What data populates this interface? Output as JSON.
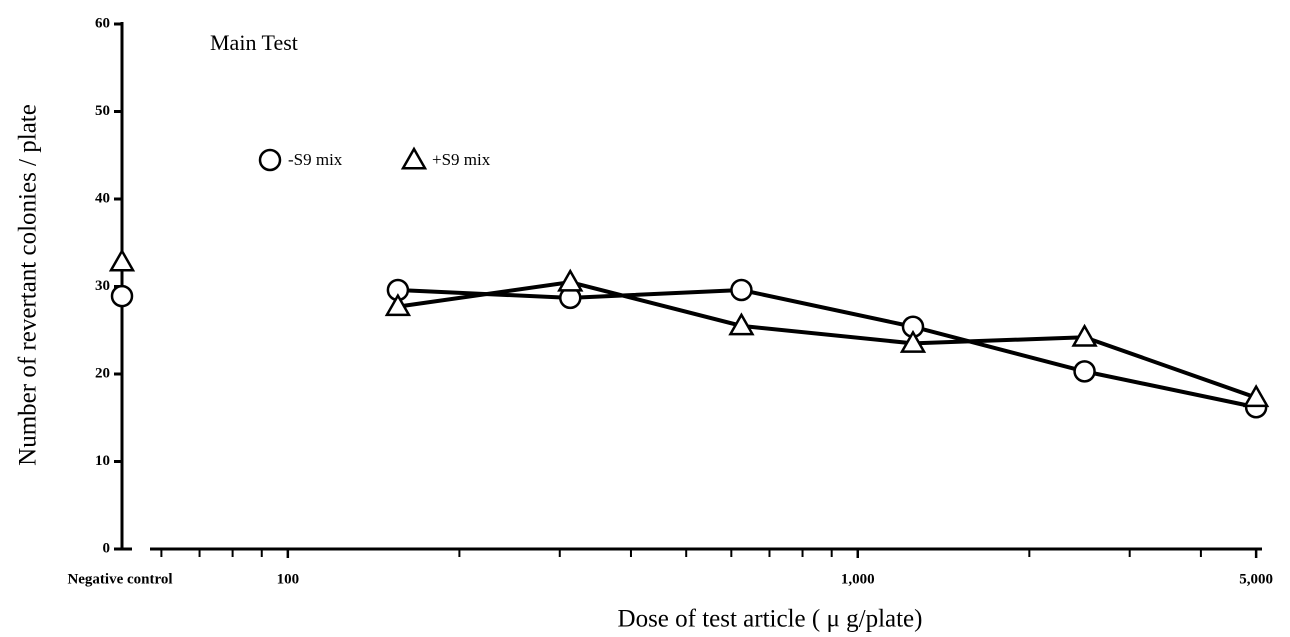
{
  "chart_data": {
    "type": "line",
    "title": "Main Test",
    "xlabel": "Dose of test article ( μ g/plate)",
    "ylabel": "Number of revertant colonies / plate",
    "control_label": "Negative control",
    "x": [
      156,
      313,
      625,
      1250,
      2500,
      5000
    ],
    "xscale": "log",
    "xlim": [
      57.3,
      5120
    ],
    "xticks": [
      100,
      {
        "value": 1000,
        "label": "1,000"
      },
      {
        "value": 5000,
        "label": "5,000"
      }
    ],
    "xminorticks": [
      60,
      70,
      80,
      90,
      200,
      300,
      400,
      500,
      600,
      700,
      800,
      900,
      2000,
      3000,
      4000
    ],
    "ylim": [
      0,
      60
    ],
    "yticks": [
      0,
      10,
      20,
      30,
      40,
      50,
      60
    ],
    "series": [
      {
        "name": "-S9 mix",
        "marker": "circle",
        "color": "#000000",
        "control": 28.9,
        "values": [
          29.6,
          28.7,
          29.6,
          25.4,
          20.3,
          16.2
        ]
      },
      {
        "name": "+S9 mix",
        "marker": "triangle",
        "color": "#000000",
        "control": 32.8,
        "values": [
          27.7,
          30.5,
          25.5,
          23.5,
          24.2,
          17.3
        ]
      }
    ]
  }
}
